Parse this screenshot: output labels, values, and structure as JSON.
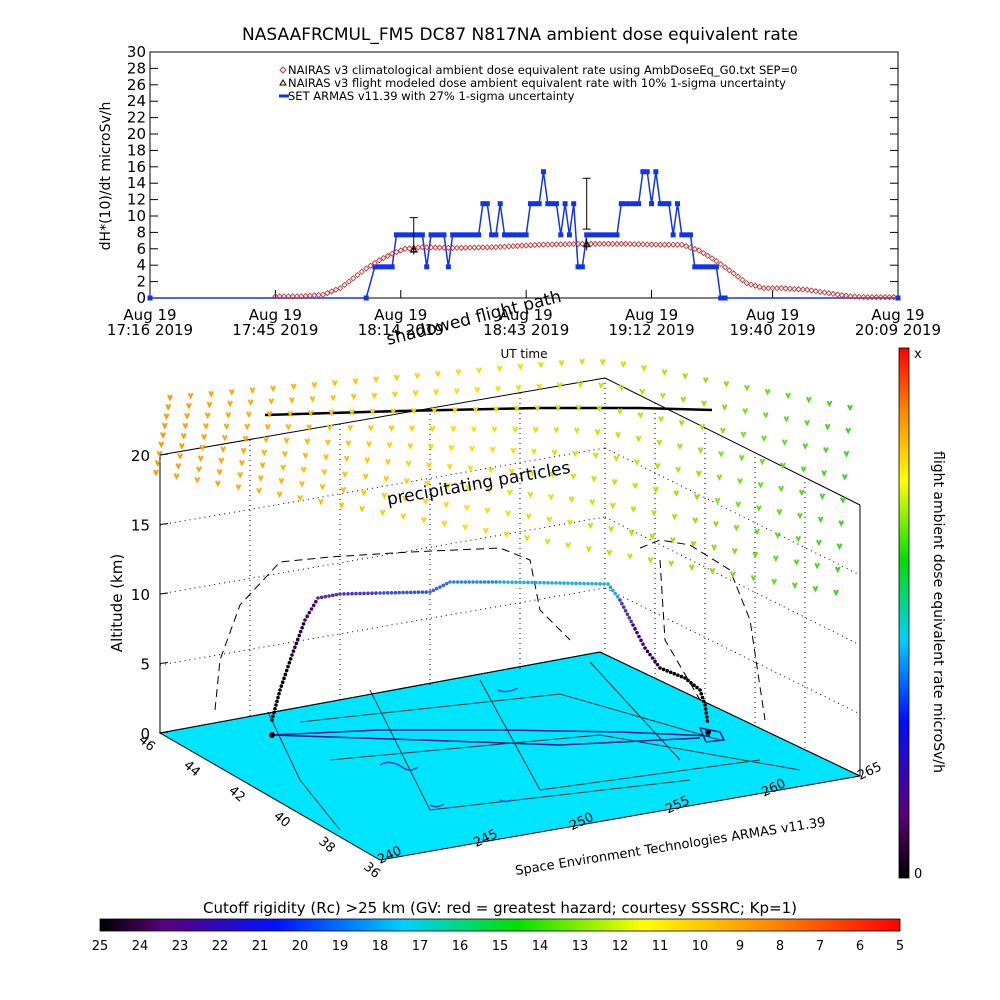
{
  "chart_data": [
    {
      "type": "line",
      "title": "NASAAFRCMUL_FM5 DC87 N817NA ambient dose equivalent rate",
      "xlabel": "UT time",
      "ylabel": "dH*(10)/dt microSv/h",
      "ylim": [
        0,
        30
      ],
      "yticks": [
        0,
        2,
        4,
        6,
        8,
        10,
        12,
        14,
        16,
        18,
        20,
        22,
        24,
        26,
        28,
        30
      ],
      "x_unit": "minutes after Aug 19 17:16 UT",
      "xlim": [
        0,
        173
      ],
      "xtick_labels": [
        {
          "x": 0,
          "line1": "Aug 19",
          "line2": "17:16 2019"
        },
        {
          "x": 29,
          "line1": "Aug 19",
          "line2": "17:45 2019"
        },
        {
          "x": 58,
          "line1": "Aug 19",
          "line2": "18:14 2019"
        },
        {
          "x": 87,
          "line1": "Aug 19",
          "line2": "18:43 2019"
        },
        {
          "x": 116,
          "line1": "Aug 19",
          "line2": "19:12 2019"
        },
        {
          "x": 144,
          "line1": "Aug 19",
          "line2": "19:40 2019"
        },
        {
          "x": 173,
          "line1": "Aug 19",
          "line2": "20:09 2019"
        }
      ],
      "legend_position": "top-right",
      "series": [
        {
          "name": "NAIRAS v3 climatological ambient dose equivalent rate using AmbDoseEq_G0.txt SEP=0",
          "marker": "diamond",
          "color": "#cc3333",
          "x": [
            29,
            35,
            40,
            44,
            47,
            50,
            53,
            56,
            59,
            63,
            70,
            80,
            90,
            100,
            110,
            118,
            123,
            127,
            131,
            135,
            138,
            142,
            146,
            152,
            158,
            162,
            166,
            172
          ],
          "y": [
            0.2,
            0.2,
            0.4,
            1.2,
            2.4,
            3.6,
            4.6,
            5.4,
            6.0,
            6.2,
            6.1,
            6.2,
            6.5,
            6.6,
            6.6,
            6.5,
            6.5,
            5.8,
            4.5,
            3.0,
            1.8,
            1.2,
            1.2,
            1.0,
            0.5,
            0.2,
            0.1,
            0.1
          ]
        },
        {
          "name": "NAIRAS v3 flight modeled dose ambient equivalent rate with 10% 1-sigma uncertainty",
          "marker": "triangle",
          "color": "#000000",
          "x": [
            61,
            101
          ],
          "y": [
            5.9,
            6.5
          ],
          "err": [
            0.6,
            0.7
          ]
        },
        {
          "name": "SET ARMAS v11.39 with 27% 1-sigma uncertainty",
          "marker": "square",
          "color": "#1133ee",
          "x": [
            0,
            50,
            52,
            53,
            54,
            55,
            56,
            57,
            58,
            59,
            60,
            61,
            62,
            63,
            64,
            65,
            66,
            67,
            68,
            69,
            70,
            71,
            72,
            73,
            74,
            75,
            76,
            77,
            78,
            79,
            80,
            81,
            82,
            83,
            84,
            85,
            86,
            87,
            88,
            89,
            90,
            91,
            92,
            93,
            94,
            95,
            96,
            97,
            98,
            99,
            100,
            101,
            102,
            103,
            104,
            105,
            106,
            107,
            108,
            109,
            110,
            111,
            112,
            113,
            114,
            115,
            116,
            117,
            118,
            119,
            120,
            121,
            122,
            123,
            124,
            125,
            126,
            127,
            128,
            129,
            130,
            131,
            132,
            133,
            173
          ],
          "y": [
            0,
            0,
            3.8,
            3.8,
            3.8,
            3.8,
            3.8,
            7.7,
            7.7,
            7.7,
            7.7,
            7.7,
            7.7,
            7.7,
            3.8,
            7.7,
            7.7,
            7.7,
            7.7,
            3.8,
            7.7,
            7.7,
            7.7,
            7.7,
            7.7,
            7.7,
            7.7,
            11.5,
            11.5,
            7.7,
            7.7,
            11.5,
            7.7,
            7.7,
            7.7,
            7.7,
            7.7,
            7.7,
            11.5,
            11.5,
            11.5,
            15.4,
            11.5,
            11.5,
            11.5,
            7.7,
            11.5,
            7.7,
            11.5,
            3.8,
            3.8,
            7.7,
            7.7,
            7.7,
            7.7,
            7.7,
            7.7,
            7.7,
            7.7,
            11.5,
            11.5,
            11.5,
            11.5,
            11.5,
            15.4,
            15.4,
            11.5,
            15.4,
            11.5,
            11.5,
            11.5,
            7.7,
            11.5,
            7.7,
            7.7,
            7.7,
            3.8,
            3.8,
            3.8,
            3.8,
            3.8,
            3.8,
            0,
            0,
            0
          ],
          "err_points": [
            {
              "x": 61,
              "y": 7.7,
              "err": 2.1
            },
            {
              "x": 101,
              "y": 11.5,
              "err": 3.1
            }
          ]
        }
      ]
    },
    {
      "type": "scatter",
      "title": "",
      "zlabel": "Altitude (km)",
      "zlim": [
        0,
        20
      ],
      "zticks": [
        0,
        5,
        10,
        15,
        20
      ],
      "lat_ticks": [
        46,
        44,
        42,
        40,
        38,
        36
      ],
      "lon_ticks": [
        240,
        245,
        250,
        255,
        260,
        265
      ],
      "credit": "Space Environment Technologies ARMAS v11.39",
      "annotations": [
        "shadowed flight path",
        "precipitating particles"
      ],
      "colorbar": {
        "label": "flight ambient dose equivalent rate microSv/h",
        "min_label": "0",
        "max_label": "x"
      },
      "flight_path": {
        "lon": [
          238.2,
          239.0,
          240.5,
          242.5,
          245.0,
          248.0,
          251.0,
          254.0,
          256.5,
          258.2,
          259.0,
          259.8
        ],
        "lat": [
          44.6,
          44.5,
          44.3,
          44.1,
          43.8,
          43.5,
          43.1,
          42.8,
          42.5,
          42.2,
          42.1,
          42.0
        ],
        "alt_km": [
          0.5,
          3.0,
          7.0,
          10.0,
          10.2,
          10.8,
          10.8,
          10.7,
          8.0,
          4.0,
          2.0,
          0.5
        ]
      }
    },
    {
      "type": "heatmap",
      "title": "Cutoff rigidity (Rc) >25 km (GV: red = greatest hazard; courtesy SSSRC; Kp=1)",
      "colorbar_ticks": [
        25,
        24,
        23,
        22,
        21,
        20,
        19,
        18,
        17,
        16,
        15,
        14,
        13,
        12,
        11,
        10,
        9,
        8,
        7,
        6,
        5
      ]
    }
  ]
}
